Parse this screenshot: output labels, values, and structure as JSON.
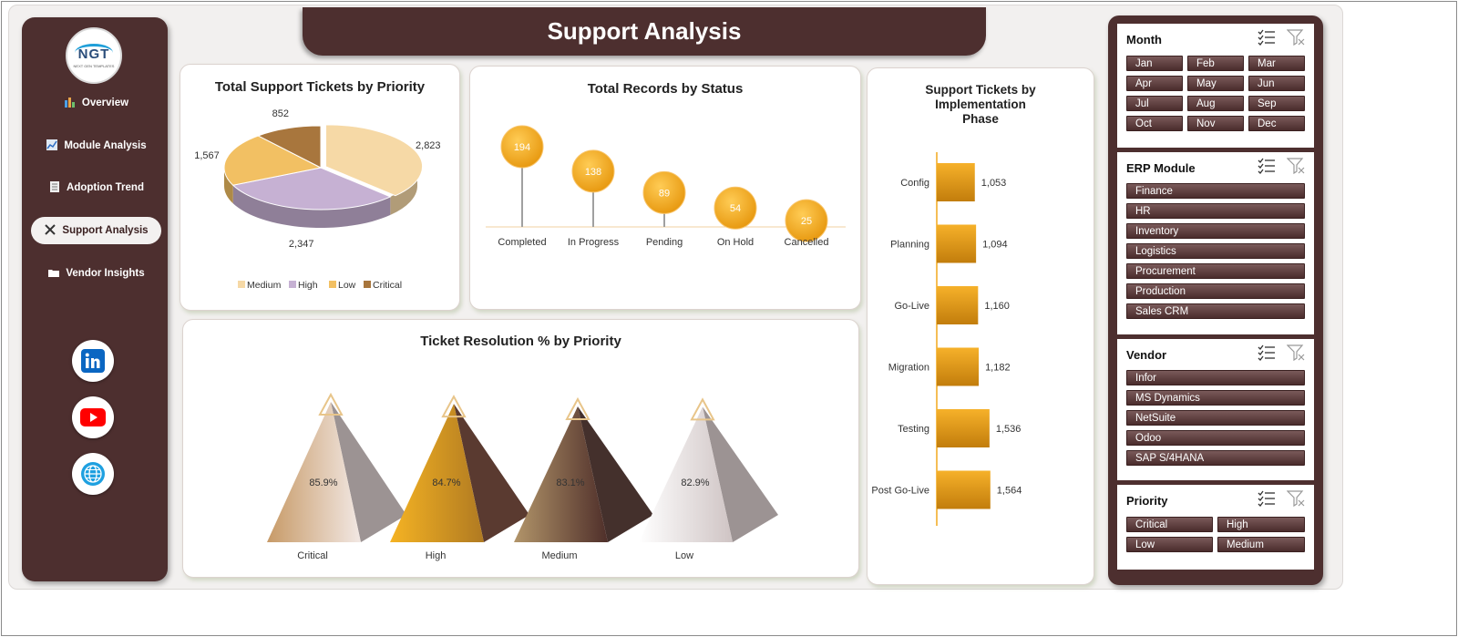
{
  "header": {
    "title": "Support Analysis"
  },
  "logo": {
    "text": "NGT",
    "subtext": "NEXT GEN TEMPLATES"
  },
  "sidebar": {
    "items": [
      {
        "label": "Overview",
        "icon": "dashboard-icon"
      },
      {
        "label": "Module Analysis",
        "icon": "chart-icon"
      },
      {
        "label": "Adoption Trend",
        "icon": "document-icon"
      },
      {
        "label": "Support Analysis",
        "icon": "tools-icon",
        "active": true
      },
      {
        "label": "Vendor Insights",
        "icon": "folder-icon"
      }
    ],
    "social": [
      "linkedin-icon",
      "youtube-icon",
      "globe-icon"
    ]
  },
  "colors": {
    "brand": "#4d2f2f",
    "accent": "#f2a81d",
    "panel_bg": "#f2f0ef"
  },
  "chart_data": [
    {
      "type": "pie",
      "title": "Total Support Tickets by Priority",
      "categories": [
        "Medium",
        "High",
        "Low",
        "Critical"
      ],
      "values": [
        2823,
        2347,
        1567,
        852
      ],
      "labels": [
        "2,823",
        "2,347",
        "1,567",
        "852"
      ],
      "colors": [
        "#f6d9a6",
        "#c6b1d3",
        "#f2c063",
        "#a8763d"
      ],
      "legend": "bottom"
    },
    {
      "type": "scatter",
      "title": "Total Records by Status",
      "categories": [
        "Completed",
        "In Progress",
        "Pending",
        "On Hold",
        "Cancelled"
      ],
      "values": [
        194,
        138,
        89,
        54,
        25
      ]
    },
    {
      "type": "bar",
      "title": "Support Tickets by Implementation Phase",
      "categories": [
        "Config",
        "Planning",
        "Go-Live",
        "Migration",
        "Testing",
        "Post Go-Live"
      ],
      "values": [
        1053,
        1094,
        1160,
        1182,
        1536,
        1564
      ],
      "labels": [
        "1,053",
        "1,094",
        "1,160",
        "1,182",
        "1,536",
        "1,564"
      ],
      "orientation": "horizontal"
    },
    {
      "type": "bar",
      "title": "Ticket Resolution % by Priority",
      "categories": [
        "Critical",
        "High",
        "Medium",
        "Low"
      ],
      "values": [
        85.9,
        84.7,
        83.1,
        82.9
      ],
      "labels": [
        "85.9%",
        "84.7%",
        "83.1%",
        "82.9%"
      ],
      "shape": "pyramid"
    }
  ],
  "filters": {
    "month": {
      "title": "Month",
      "options": [
        "Jan",
        "Feb",
        "Mar",
        "Apr",
        "May",
        "Jun",
        "Jul",
        "Aug",
        "Sep",
        "Oct",
        "Nov",
        "Dec"
      ]
    },
    "erp": {
      "title": "ERP Module",
      "options": [
        "Finance",
        "HR",
        "Inventory",
        "Logistics",
        "Procurement",
        "Production",
        "Sales CRM"
      ]
    },
    "vendor": {
      "title": "Vendor",
      "options": [
        "Infor",
        "MS Dynamics",
        "NetSuite",
        "Odoo",
        "SAP S/4HANA"
      ]
    },
    "priority": {
      "title": "Priority",
      "options": [
        "Critical",
        "High",
        "Low",
        "Medium"
      ]
    }
  }
}
